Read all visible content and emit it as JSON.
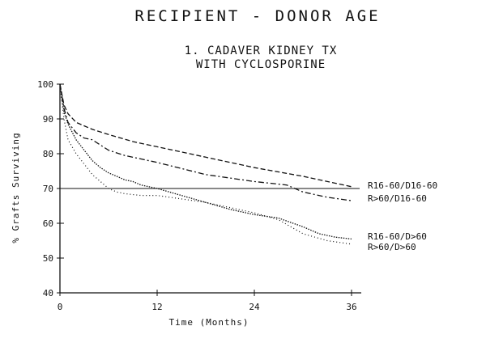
{
  "chart_data": {
    "type": "line",
    "title": "RECIPIENT - DONOR AGE",
    "subtitle_lines": [
      "1. CADAVER KIDNEY TX",
      "WITH CYCLOSPORINE"
    ],
    "xlabel": "Time (Months)",
    "ylabel": "% Grafts Surviving",
    "xlim": [
      0,
      36
    ],
    "ylim": [
      40,
      100
    ],
    "xticks": [
      0,
      12,
      24,
      36
    ],
    "yticks": [
      40,
      50,
      60,
      70,
      80,
      90,
      100
    ],
    "xtick_labels": [
      "0",
      "12",
      "24",
      "36"
    ],
    "ytick_labels": [
      "40",
      "50",
      "60",
      "70",
      "80",
      "90",
      "100"
    ],
    "grid": false,
    "legend_position": "right, at line ends",
    "reference_line": {
      "y": 70
    },
    "series": [
      {
        "name": "R16-60/D16-60",
        "style": "dashed",
        "x": [
          0,
          0.5,
          1,
          2,
          3,
          4,
          6,
          9,
          12,
          18,
          24,
          30,
          36
        ],
        "y": [
          100,
          94,
          91.5,
          89,
          88,
          87,
          85.5,
          83.5,
          82,
          79,
          76,
          73.5,
          70.5
        ]
      },
      {
        "name": "R>60/D16-60",
        "style": "dash-dot",
        "x": [
          0,
          0.5,
          1,
          2,
          3,
          4,
          6,
          8,
          12,
          18,
          24,
          28,
          30,
          33,
          36
        ],
        "y": [
          100,
          93,
          89,
          86,
          84.5,
          84,
          81,
          79.5,
          77.5,
          74,
          72,
          71,
          69,
          67.5,
          66.5
        ]
      },
      {
        "name": "R16-60/D>60",
        "style": "dense-dotted",
        "x": [
          0,
          0.5,
          1,
          2,
          3,
          4,
          5,
          6,
          7,
          8,
          9,
          10,
          12,
          15,
          18,
          21,
          24,
          27,
          30,
          32,
          34,
          36
        ],
        "y": [
          100,
          92,
          88.5,
          84,
          81,
          78,
          76,
          74.5,
          73.5,
          72.5,
          72,
          71,
          70,
          68,
          66,
          64,
          62.5,
          61.5,
          59,
          57,
          56,
          55.5
        ]
      },
      {
        "name": "R>60/D>60",
        "style": "sparse-dotted",
        "x": [
          0,
          0.5,
          1,
          2,
          3,
          4,
          5,
          6,
          7,
          8,
          10,
          12,
          15,
          18,
          21,
          24,
          27,
          30,
          33,
          36
        ],
        "y": [
          100,
          90,
          84,
          80,
          77,
          74,
          72,
          70,
          69,
          68.5,
          68,
          68,
          67,
          66,
          64.5,
          63,
          61,
          57,
          55,
          54
        ]
      }
    ]
  }
}
